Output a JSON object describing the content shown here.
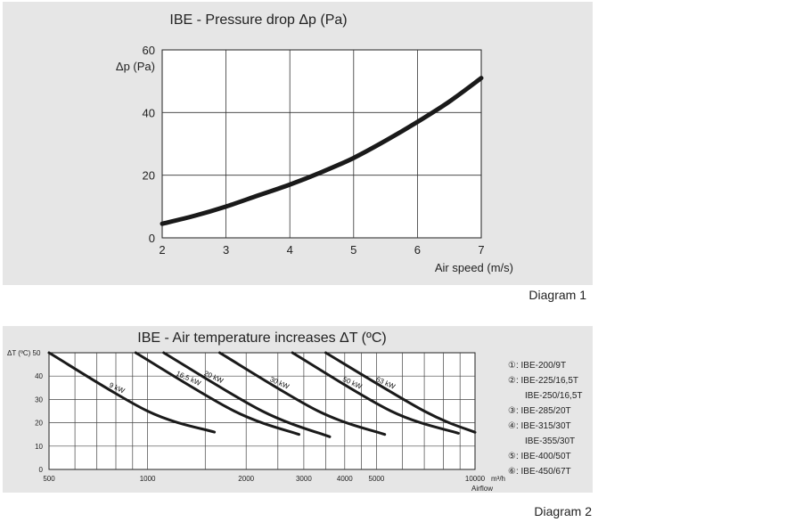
{
  "diagram1": {
    "caption": "Diagram 1",
    "chart_data": {
      "type": "line",
      "title": "IBE - Pressure drop Δp (Pa)",
      "xlabel": "Air speed (m/s)",
      "ylabel": "Δp (Pa)",
      "xlim": [
        2,
        7
      ],
      "ylim": [
        0,
        60
      ],
      "x_ticks": [
        "2",
        "3",
        "4",
        "5",
        "6",
        "7"
      ],
      "y_ticks": [
        "0",
        "20",
        "40",
        "60"
      ],
      "grid": true,
      "series": [
        {
          "x": [
            2,
            2.5,
            3,
            3.5,
            4,
            4.5,
            5,
            5.5,
            6,
            6.5,
            7
          ],
          "values": [
            4.5,
            7.0,
            10.0,
            13.5,
            17.0,
            21.0,
            25.5,
            31.0,
            37.0,
            43.5,
            51.0
          ]
        }
      ]
    }
  },
  "diagram2": {
    "caption": "Diagram 2",
    "chart_data": {
      "type": "line",
      "title": "IBE - Air temperature increases ΔT (ºC)",
      "ylabel": "ΔT (ºC)",
      "xlabel": "Airflow",
      "x_unit": "m³/h",
      "x_scale": "log",
      "xlim": [
        500,
        10000
      ],
      "ylim": [
        0,
        50
      ],
      "x_ticks": [
        "500",
        "1000",
        "2000",
        "3000",
        "4000",
        "5000",
        "10000"
      ],
      "y_ticks": [
        "0",
        "10",
        "20",
        "30",
        "40",
        "50"
      ],
      "grid": true,
      "series": [
        {
          "label": "9 kW",
          "x": [
            500,
            1000,
            1600
          ],
          "values": [
            50,
            25,
            16
          ]
        },
        {
          "label": "16,5 kW",
          "x": [
            920,
            1840,
            2900
          ],
          "values": [
            50,
            25,
            15
          ]
        },
        {
          "label": "20 kW",
          "x": [
            1120,
            2240,
            3600
          ],
          "values": [
            50,
            25,
            14
          ]
        },
        {
          "label": "30 kW",
          "x": [
            1660,
            3320,
            5300
          ],
          "values": [
            50,
            25,
            15
          ]
        },
        {
          "label": "50 kW",
          "x": [
            2770,
            5540,
            8900
          ],
          "values": [
            50,
            25,
            15.5
          ]
        },
        {
          "label": "63 kW",
          "x": [
            3500,
            7000,
            11000
          ],
          "values": [
            50,
            25,
            15.9
          ]
        }
      ],
      "legend": [
        "①: IBE-200/9T",
        "②: IBE-225/16,5T",
        "IBE-250/16,5T",
        "③: IBE-285/20T",
        "④: IBE-315/30T",
        "IBE-355/30T",
        "⑤: IBE-400/50T",
        "⑥: IBE-450/67T"
      ],
      "legend_position": "right"
    }
  }
}
